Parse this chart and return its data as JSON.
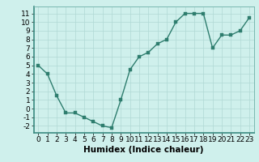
{
  "x": [
    0,
    1,
    2,
    3,
    4,
    5,
    6,
    7,
    8,
    9,
    10,
    11,
    12,
    13,
    14,
    15,
    16,
    17,
    18,
    19,
    20,
    21,
    22,
    23
  ],
  "y": [
    5,
    4,
    1.5,
    -0.5,
    -0.5,
    -1,
    -1.5,
    -2,
    -2.2,
    1,
    4.5,
    6,
    6.5,
    7.5,
    8,
    10,
    11,
    11,
    11,
    7,
    8.5,
    8.5,
    9,
    10.5
  ],
  "line_color": "#2e7d6e",
  "marker_color": "#2e7d6e",
  "bg_color": "#cff0ec",
  "grid_color": "#b0d8d4",
  "xlabel": "Humidex (Indice chaleur)",
  "xlim": [
    -0.5,
    23.5
  ],
  "ylim": [
    -2.8,
    11.8
  ],
  "xticks": [
    0,
    1,
    2,
    3,
    4,
    5,
    6,
    7,
    8,
    9,
    10,
    11,
    12,
    13,
    14,
    15,
    16,
    17,
    18,
    19,
    20,
    21,
    22,
    23
  ],
  "yticks": [
    -2,
    -1,
    0,
    1,
    2,
    3,
    4,
    5,
    6,
    7,
    8,
    9,
    10,
    11
  ],
  "tick_font_size": 6.5,
  "xlabel_font_size": 7.5,
  "line_width": 1.0,
  "marker_size": 2.5
}
